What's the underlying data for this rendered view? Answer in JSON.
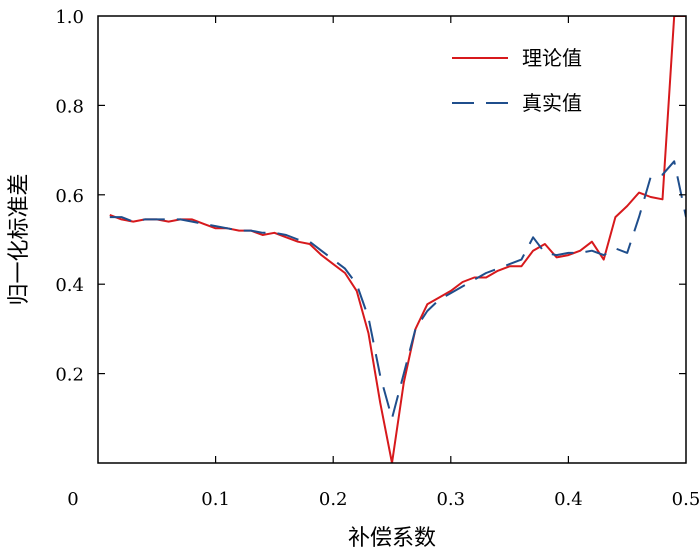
{
  "chart_data": {
    "type": "line",
    "xlabel": "补偿系数",
    "ylabel": "归一化标准差",
    "xlim": [
      0,
      0.5
    ],
    "ylim": [
      0,
      1.0
    ],
    "xticks": [
      {
        "value": 0,
        "label": "0"
      },
      {
        "value": 0.1,
        "label": "0.1"
      },
      {
        "value": 0.2,
        "label": "0.2"
      },
      {
        "value": 0.3,
        "label": "0.3"
      },
      {
        "value": 0.4,
        "label": "0.4"
      },
      {
        "value": 0.5,
        "label": "0.5"
      }
    ],
    "yticks": [
      {
        "value": 0.2,
        "label": "0.2"
      },
      {
        "value": 0.4,
        "label": "0.4"
      },
      {
        "value": 0.6,
        "label": "0.6"
      },
      {
        "value": 0.8,
        "label": "0.8"
      },
      {
        "value": 1.0,
        "label": "1.0"
      }
    ],
    "grid": false,
    "legend_position": "top-right",
    "series": [
      {
        "name": "理论值",
        "color": "#d7191c",
        "style": "solid",
        "x": [
          0.01,
          0.02,
          0.03,
          0.04,
          0.05,
          0.06,
          0.07,
          0.08,
          0.09,
          0.1,
          0.11,
          0.12,
          0.13,
          0.14,
          0.15,
          0.16,
          0.17,
          0.18,
          0.19,
          0.2,
          0.21,
          0.22,
          0.23,
          0.24,
          0.25,
          0.26,
          0.27,
          0.28,
          0.29,
          0.3,
          0.31,
          0.32,
          0.33,
          0.34,
          0.35,
          0.36,
          0.37,
          0.38,
          0.39,
          0.4,
          0.41,
          0.42,
          0.43,
          0.44,
          0.45,
          0.46,
          0.47,
          0.48,
          0.49,
          0.5
        ],
        "y": [
          0.555,
          0.545,
          0.54,
          0.545,
          0.545,
          0.54,
          0.545,
          0.545,
          0.535,
          0.525,
          0.525,
          0.52,
          0.52,
          0.51,
          0.515,
          0.505,
          0.495,
          0.49,
          0.465,
          0.445,
          0.425,
          0.385,
          0.29,
          0.135,
          0.0,
          0.18,
          0.3,
          0.355,
          0.37,
          0.385,
          0.405,
          0.415,
          0.415,
          0.43,
          0.44,
          0.44,
          0.475,
          0.49,
          0.46,
          0.465,
          0.475,
          0.495,
          0.455,
          0.55,
          0.575,
          0.605,
          0.595,
          0.59,
          1.0,
          1.0
        ]
      },
      {
        "name": "真实值",
        "color": "#1f4e8c",
        "style": "dashed",
        "x": [
          0.01,
          0.02,
          0.03,
          0.04,
          0.05,
          0.06,
          0.07,
          0.08,
          0.09,
          0.1,
          0.11,
          0.12,
          0.13,
          0.14,
          0.15,
          0.16,
          0.17,
          0.18,
          0.19,
          0.2,
          0.21,
          0.22,
          0.23,
          0.24,
          0.25,
          0.26,
          0.27,
          0.28,
          0.29,
          0.3,
          0.31,
          0.32,
          0.33,
          0.34,
          0.35,
          0.36,
          0.37,
          0.38,
          0.39,
          0.4,
          0.41,
          0.42,
          0.43,
          0.44,
          0.45,
          0.46,
          0.47,
          0.48,
          0.49,
          0.5
        ],
        "y": [
          0.55,
          0.55,
          0.54,
          0.545,
          0.545,
          0.545,
          0.545,
          0.54,
          0.535,
          0.53,
          0.525,
          0.52,
          0.52,
          0.515,
          0.515,
          0.51,
          0.5,
          0.495,
          0.475,
          0.455,
          0.435,
          0.4,
          0.325,
          0.195,
          0.1,
          0.2,
          0.3,
          0.34,
          0.365,
          0.38,
          0.395,
          0.41,
          0.425,
          0.435,
          0.445,
          0.455,
          0.505,
          0.47,
          0.465,
          0.47,
          0.47,
          0.475,
          0.465,
          0.48,
          0.47,
          0.55,
          0.64,
          0.645,
          0.675,
          0.55
        ]
      }
    ]
  }
}
